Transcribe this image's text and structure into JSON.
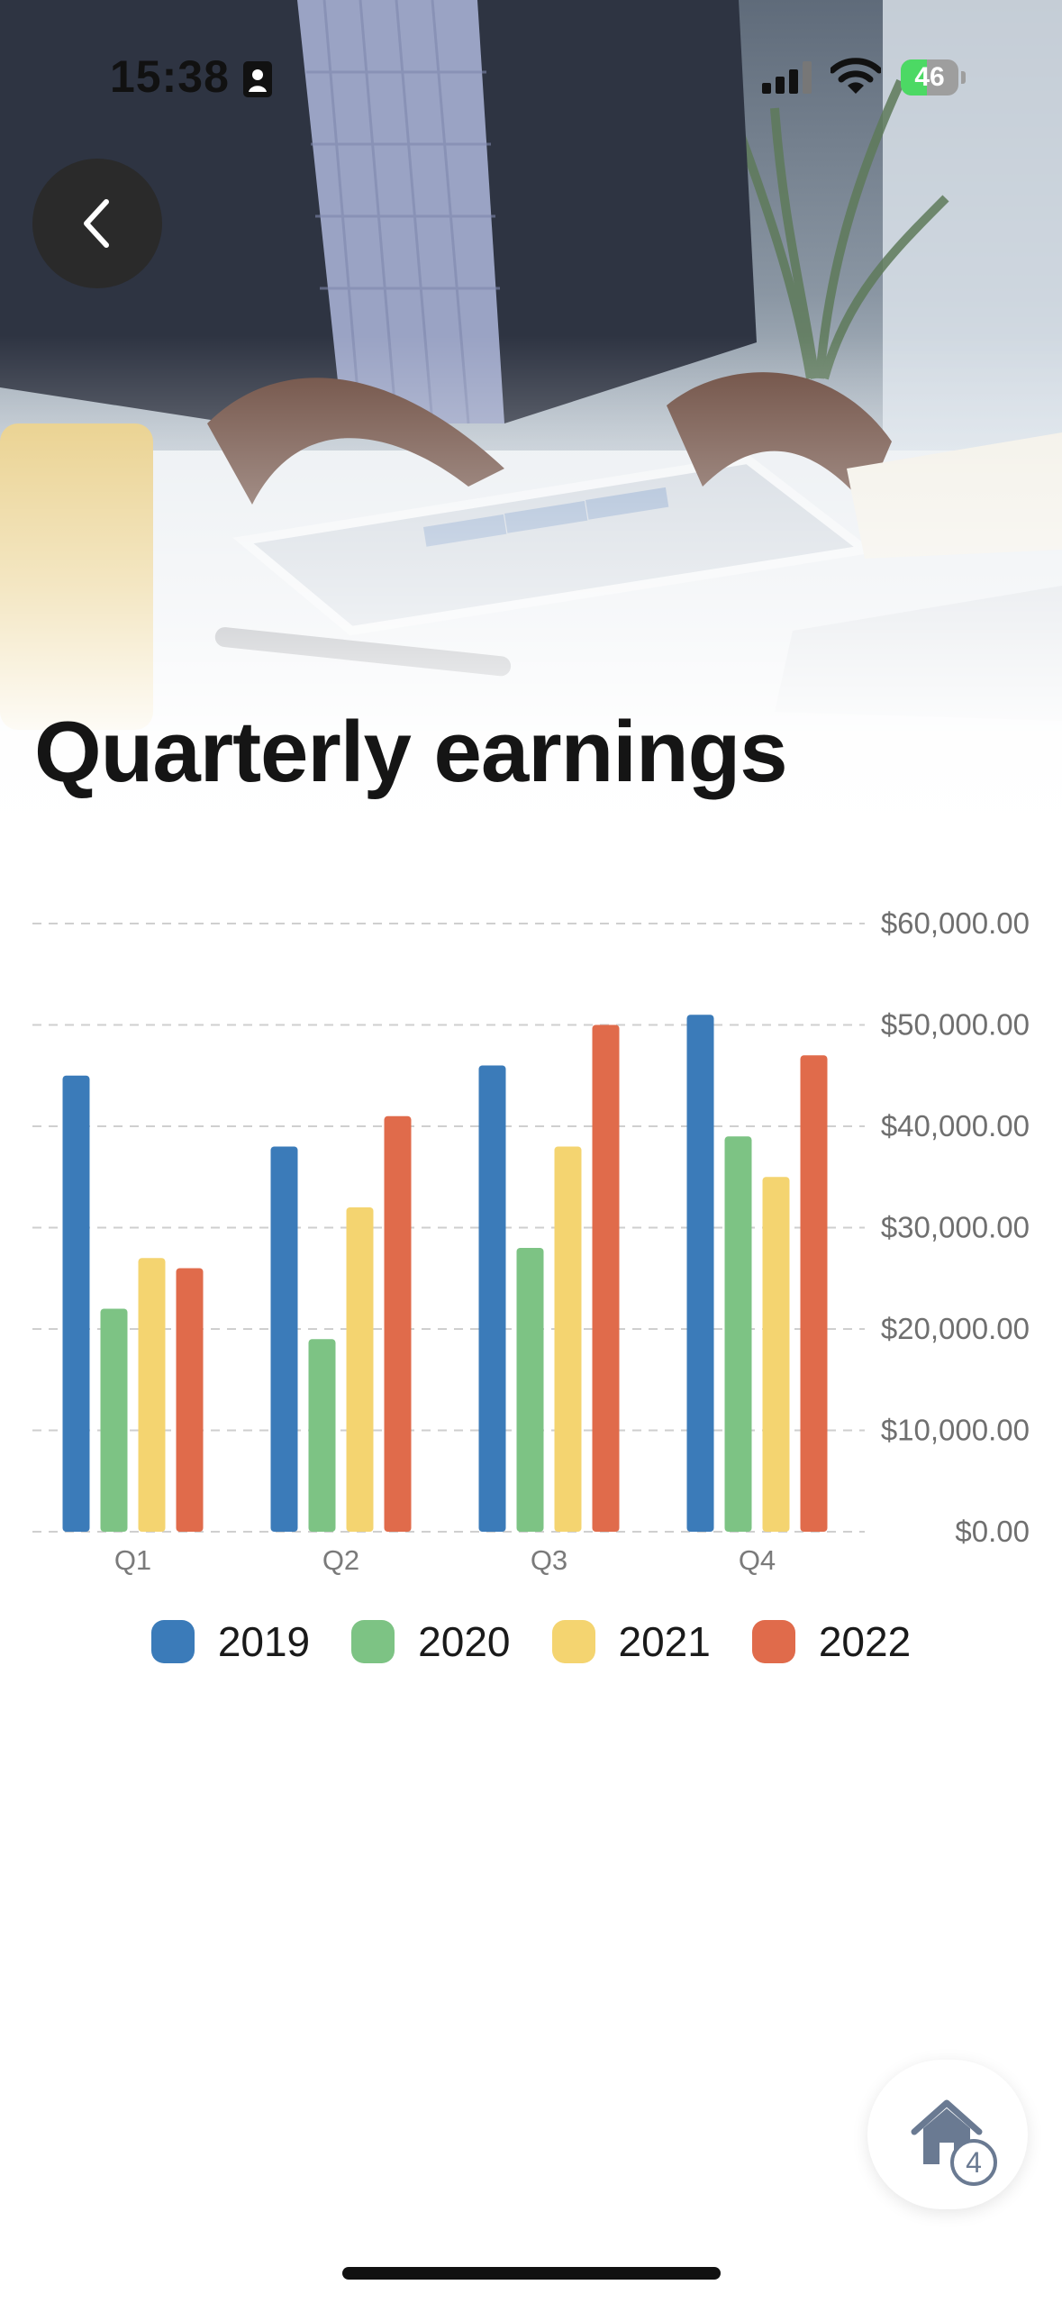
{
  "status_bar": {
    "time": "15:38",
    "battery": "46",
    "battery_level": 0.46,
    "icons": [
      "id-badge-icon",
      "cellular-signal-icon",
      "wifi-icon",
      "battery-charging-icon"
    ]
  },
  "header": {
    "title": "Quarterly earnings",
    "back_icon": "chevron-left-icon"
  },
  "chart_data": {
    "type": "bar",
    "categories": [
      "Q1",
      "Q2",
      "Q3",
      "Q4"
    ],
    "series": [
      {
        "name": "2019",
        "color": "#3b7bb9",
        "values": [
          45000,
          38000,
          46000,
          51000
        ]
      },
      {
        "name": "2020",
        "color": "#7dc384",
        "values": [
          22000,
          19000,
          28000,
          39000
        ]
      },
      {
        "name": "2021",
        "color": "#f4d470",
        "values": [
          27000,
          32000,
          38000,
          35000
        ]
      },
      {
        "name": "2022",
        "color": "#e06b4b",
        "values": [
          26000,
          41000,
          50000,
          47000
        ]
      }
    ],
    "yticks": [
      "$0.00",
      "$10,000.00",
      "$20,000.00",
      "$30,000.00",
      "$40,000.00",
      "$50,000.00",
      "$60,000.00"
    ],
    "ylim": [
      0,
      60000
    ],
    "grid": true,
    "y_axis_position": "right",
    "legend_position": "bottom"
  },
  "home_button": {
    "icon": "home-icon",
    "badge": "4"
  }
}
